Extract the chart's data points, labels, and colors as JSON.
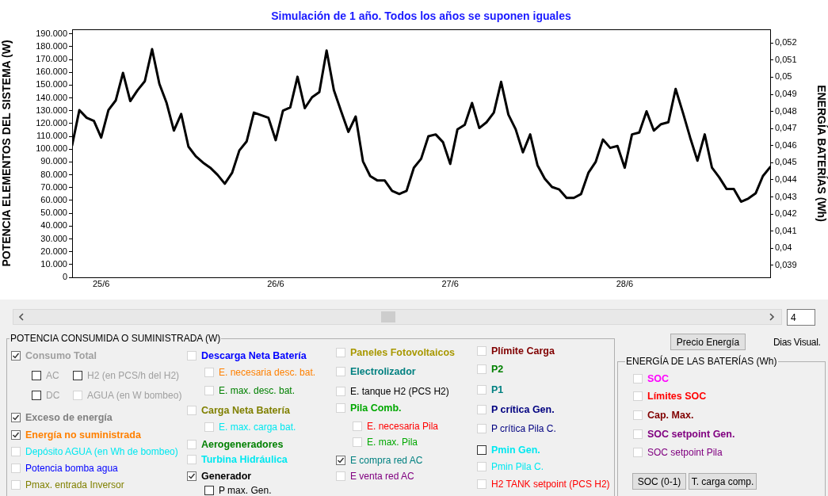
{
  "chart_data": [
    {
      "type": "line",
      "title": "Simulación de 1 año. Todos los años se suponen iguales",
      "ylabel": "POTENCIA ELEMENTOS DEL SISTEMA (W)",
      "y2label": "ENERGÍA BATERÍAS (Wh)",
      "categories": [
        null,
        null,
        null,
        null,
        "25/6",
        null,
        null,
        null,
        null,
        null,
        null,
        null,
        null,
        null,
        null,
        null,
        null,
        null,
        null,
        null,
        null,
        null,
        null,
        null,
        null,
        null,
        null,
        null,
        "26/6",
        null,
        null,
        null,
        null,
        null,
        null,
        null,
        null,
        null,
        null,
        null,
        null,
        null,
        null,
        null,
        null,
        null,
        null,
        null,
        null,
        null,
        null,
        null,
        "27/6",
        null,
        null,
        null,
        null,
        null,
        null,
        null,
        null,
        null,
        null,
        null,
        null,
        null,
        null,
        null,
        null,
        null,
        null,
        null,
        null,
        null,
        null,
        null,
        "28/6",
        null,
        null,
        null,
        null,
        null,
        null,
        null,
        null,
        null,
        null,
        null,
        null,
        null,
        null,
        null,
        null,
        null,
        null,
        null,
        null
      ],
      "series": [
        {
          "color": "#000000",
          "values": [
            103000,
            130500,
            124500,
            122000,
            109000,
            130500,
            138000,
            159500,
            137500,
            146000,
            153000,
            178000,
            151000,
            136000,
            114500,
            127500,
            102000,
            94500,
            89500,
            85500,
            80000,
            73000,
            81500,
            99000,
            106000,
            128500,
            126500,
            124500,
            107000,
            130000,
            132500,
            156500,
            132000,
            140500,
            144500,
            177000,
            146000,
            129500,
            113500,
            125500,
            90500,
            79000,
            75500,
            75500,
            67500,
            65000,
            67500,
            85500,
            92500,
            110000,
            111500,
            105500,
            88500,
            115500,
            119000,
            136000,
            116500,
            121000,
            128500,
            152500,
            127000,
            115500,
            97500,
            111500,
            87500,
            77000,
            70500,
            68500,
            62000,
            62000,
            65000,
            81500,
            90000,
            107500,
            101000,
            102500,
            85500,
            111500,
            113000,
            129500,
            114500,
            119500,
            121000,
            147000,
            128500,
            109000,
            91000,
            111500,
            85500,
            78000,
            69000,
            69000,
            59000,
            61500,
            65500,
            79000,
            86000
          ]
        }
      ],
      "ylim": [
        0,
        193500
      ],
      "yticks": [
        {
          "value": 0,
          "label": "0"
        },
        {
          "value": 10000,
          "label": "10.000"
        },
        {
          "value": 20000,
          "label": "20.000"
        },
        {
          "value": 30000,
          "label": "30.000"
        },
        {
          "value": 40000,
          "label": "40.000"
        },
        {
          "value": 50000,
          "label": "50.000"
        },
        {
          "value": 60000,
          "label": "60.000"
        },
        {
          "value": 70000,
          "label": "70.000"
        },
        {
          "value": 80000,
          "label": "80.000"
        },
        {
          "value": 90000,
          "label": "90.000"
        },
        {
          "value": 100000,
          "label": "100.000"
        },
        {
          "value": 110000,
          "label": "110.000"
        },
        {
          "value": 120000,
          "label": "120.000"
        },
        {
          "value": 130000,
          "label": "130.000"
        },
        {
          "value": 140000,
          "label": "140.000"
        },
        {
          "value": 150000,
          "label": "150.000"
        },
        {
          "value": 160000,
          "label": "160.000"
        },
        {
          "value": 170000,
          "label": "170.000"
        },
        {
          "value": 180000,
          "label": "180.000"
        },
        {
          "value": 190000,
          "label": "190.000"
        }
      ],
      "y2lim": [
        0.0383,
        0.0528
      ],
      "y2ticks": [
        {
          "value": 0.039,
          "label": "0,039"
        },
        {
          "value": 0.04,
          "label": "0,04"
        },
        {
          "value": 0.041,
          "label": "0,041"
        },
        {
          "value": 0.042,
          "label": "0,042"
        },
        {
          "value": 0.043,
          "label": "0,043"
        },
        {
          "value": 0.044,
          "label": "0,044"
        },
        {
          "value": 0.045,
          "label": "0,045"
        },
        {
          "value": 0.046,
          "label": "0,046"
        },
        {
          "value": 0.047,
          "label": "0,047"
        },
        {
          "value": 0.048,
          "label": "0,048"
        },
        {
          "value": 0.049,
          "label": "0,049"
        },
        {
          "value": 0.05,
          "label": "0,05"
        },
        {
          "value": 0.051,
          "label": "0,051"
        },
        {
          "value": 0.052,
          "label": "0,052"
        }
      ],
      "grid": false,
      "legend": false
    },
    {
      "type": "other",
      "annotations": [
        "POTENCIA CONSUMIDA O SUMINISTRADA (W)",
        "Consumo Total",
        "AC",
        "H2 (en PCS/h del H2)",
        "DC",
        "AGUA (en W bombeo)",
        "Exceso de energía",
        "Energía no suministrada",
        "Depósito AGUA (en Wh de bombeo)",
        "Potencia bomba agua",
        "Pmax. entrada Inversor",
        "Descarga Neta Batería",
        "E. necesaria desc. bat.",
        "E. max. desc. bat.",
        "Carga Neta Batería",
        "E. max. carga bat.",
        "Aerogeneradores",
        "Turbina Hidráulica",
        "Generador",
        "P max. Gen.",
        "Paneles Fotovoltaicos",
        "Electrolizador",
        "E. tanque H2 (PCS H2)",
        "Pila Comb.",
        "E. necesaria Pila",
        "E. max. Pila",
        "E compra red AC",
        "E venta red AC",
        "Plímite Carga",
        "P2",
        "P1",
        "P crítica Gen.",
        "P crítica Pila C.",
        "Pmin Gen.",
        "Pmin Pila C.",
        "H2 TANK setpoint (PCS H2)",
        "ENERGÍA DE LAS BATERÍAS (Wh)",
        "SOC",
        "Límites SOC",
        "Cap. Max.",
        "SOC setpoint Gen.",
        "SOC setpoint Pila",
        "SOC (0-1)",
        "T. carga comp.",
        "Precio Energía",
        "Dias Visual.",
        "4"
      ]
    }
  ]
}
